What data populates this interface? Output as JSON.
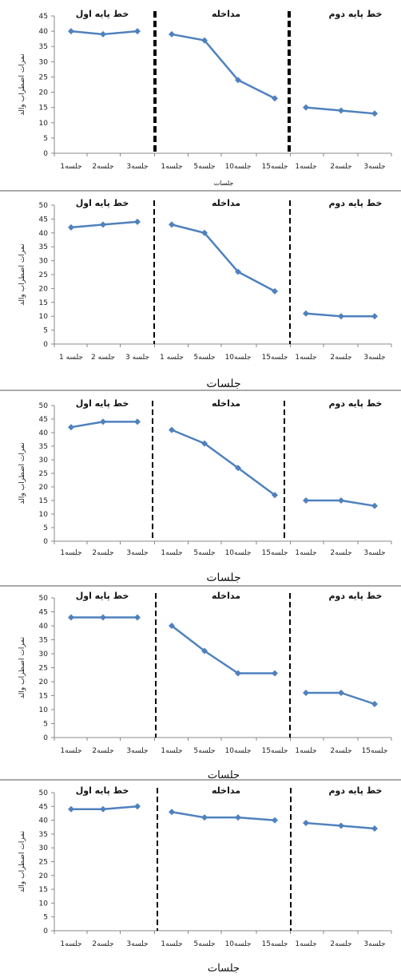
{
  "chart_data": [
    {
      "type": "line",
      "ylim": [
        0,
        45
      ],
      "yticks": [
        0,
        5,
        10,
        15,
        20,
        25,
        30,
        35,
        40,
        45
      ],
      "ylabel": "نمرات اضطراب والد",
      "xlabel": "جلسات",
      "phases": [
        {
          "name": "خط پایه اول",
          "categories": [
            "جلسه1",
            "جلسه2",
            "جلسه3"
          ],
          "values": [
            40,
            39,
            40
          ]
        },
        {
          "name": "مداخله",
          "categories": [
            "جلسه1",
            "جلسه5",
            "جلسه10",
            "جلسه15"
          ],
          "values": [
            39,
            37,
            24,
            18
          ]
        },
        {
          "name": "خط پایه دوم",
          "categories": [
            "جلسه1",
            "جلسه2",
            "جلسه3"
          ],
          "values": [
            15,
            14,
            13
          ]
        }
      ],
      "grid": false,
      "line_color": "#4F81BD",
      "divider_color": "#000000"
    },
    {
      "type": "line",
      "ylim": [
        0,
        50
      ],
      "yticks": [
        0,
        5,
        10,
        15,
        20,
        25,
        30,
        35,
        40,
        45,
        50
      ],
      "ylabel": "نمرات اضطراب والد",
      "xlabel": "جلسات",
      "phases": [
        {
          "name": "خط پایه اول",
          "categories": [
            "جلسه 1",
            "جلسه 2",
            "جلسه 3"
          ],
          "values": [
            42,
            43,
            44
          ]
        },
        {
          "name": "مداخله",
          "categories": [
            "جلسه 1",
            "جلسه5",
            "جلسه10",
            "جلسه15"
          ],
          "values": [
            43,
            40,
            26,
            19
          ]
        },
        {
          "name": "خط پایه دوم",
          "categories": [
            "جلسه1",
            "جلسه2",
            "جلسه3"
          ],
          "values": [
            11,
            10,
            10
          ]
        }
      ],
      "grid": false,
      "line_color": "#4F81BD",
      "divider_color": "#000000"
    },
    {
      "type": "line",
      "ylim": [
        0,
        50
      ],
      "yticks": [
        0,
        5,
        10,
        15,
        20,
        25,
        30,
        35,
        40,
        45,
        50
      ],
      "ylabel": "نمرات اضطراب والد",
      "xlabel": "جلسات",
      "phases": [
        {
          "name": "خط پایه اول",
          "categories": [
            "جلسه1",
            "جلسه2",
            "جلسه3"
          ],
          "values": [
            42,
            44,
            44
          ]
        },
        {
          "name": "مداخله",
          "categories": [
            "جلسه1",
            "جلسه5",
            "جلسه10",
            "جلسه15"
          ],
          "values": [
            41,
            36,
            27,
            17
          ]
        },
        {
          "name": "خط پایه دوم",
          "categories": [
            "جلسه1",
            "جلسه2",
            "جلسه3"
          ],
          "values": [
            15,
            15,
            13
          ]
        }
      ],
      "grid": false,
      "line_color": "#4F81BD",
      "divider_color": "#000000"
    },
    {
      "type": "line",
      "ylim": [
        0,
        50
      ],
      "yticks": [
        0,
        5,
        10,
        15,
        20,
        25,
        30,
        35,
        40,
        45,
        50
      ],
      "ylabel": "نمرات اضطراب والد",
      "xlabel": "جلسات",
      "phases": [
        {
          "name": "خط پایه اول",
          "categories": [
            "جلسه1",
            "جلسه2",
            "جلسه3"
          ],
          "values": [
            43,
            43,
            43
          ]
        },
        {
          "name": "مداخله",
          "categories": [
            "جلسه1",
            "جلسه5",
            "جلسه10",
            "جلسه15"
          ],
          "values": [
            40,
            31,
            23,
            23
          ]
        },
        {
          "name": "خط پایه دوم",
          "categories": [
            "جلسه1",
            "جلسه2",
            "جلسه15"
          ],
          "values": [
            16,
            16,
            12
          ]
        }
      ],
      "grid": false,
      "line_color": "#4F81BD",
      "divider_color": "#000000"
    },
    {
      "type": "line",
      "ylim": [
        0,
        50
      ],
      "yticks": [
        0,
        5,
        10,
        15,
        20,
        25,
        30,
        35,
        40,
        45,
        50
      ],
      "ylabel": "نمرات اضطراب والد",
      "xlabel": "جلسات",
      "phases": [
        {
          "name": "خط پایه اول",
          "categories": [
            "جلسه1",
            "جلسه2",
            "جلسه3"
          ],
          "values": [
            44,
            44,
            45
          ]
        },
        {
          "name": "مداخله",
          "categories": [
            "جلسه1",
            "جلسه5",
            "جلسه10",
            "جلسه15"
          ],
          "values": [
            43,
            41,
            41,
            40
          ]
        },
        {
          "name": "خط پایه دوم",
          "categories": [
            "جلسه1",
            "جلسه2",
            "جلسه3"
          ],
          "values": [
            39,
            38,
            37
          ]
        }
      ],
      "grid": false,
      "line_color": "#4F81BD",
      "divider_color": "#000000"
    }
  ]
}
